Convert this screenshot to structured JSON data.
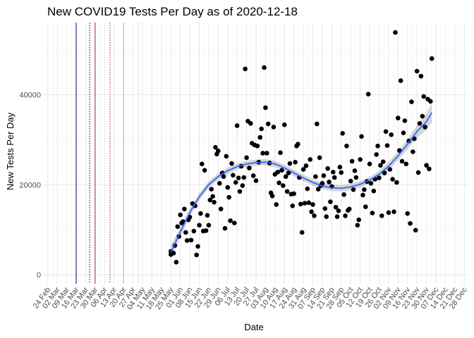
{
  "chart_data": {
    "type": "scatter",
    "title": "New COVID19 Tests Per Day as of 2020-12-18",
    "xlabel": "Date",
    "ylabel": "New Tests Per Day",
    "x_range": [
      "2020-02-21",
      "2020-12-31"
    ],
    "y_range": [
      -2000,
      56000
    ],
    "y_ticks": [
      0,
      20000,
      40000
    ],
    "y_tick_labels": [
      "0",
      "20000",
      "40000"
    ],
    "x_ticks": [
      "2020-02-24",
      "2020-03-02",
      "2020-03-09",
      "2020-03-16",
      "2020-03-23",
      "2020-03-30",
      "2020-04-06",
      "2020-04-13",
      "2020-04-20",
      "2020-04-27",
      "2020-05-04",
      "2020-05-11",
      "2020-05-18",
      "2020-05-25",
      "2020-06-01",
      "2020-06-08",
      "2020-06-15",
      "2020-06-22",
      "2020-06-29",
      "2020-07-06",
      "2020-07-13",
      "2020-07-20",
      "2020-07-27",
      "2020-08-03",
      "2020-08-10",
      "2020-08-17",
      "2020-08-24",
      "2020-08-31",
      "2020-09-07",
      "2020-09-14",
      "2020-09-21",
      "2020-09-28",
      "2020-10-05",
      "2020-10-12",
      "2020-10-19",
      "2020-10-26",
      "2020-11-02",
      "2020-11-09",
      "2020-11-16",
      "2020-11-23",
      "2020-11-30",
      "2020-12-07",
      "2020-12-14",
      "2020-12-21",
      "2020-12-28"
    ],
    "x_tick_labels": [
      "24 Feb",
      "02 Mar",
      "09 Mar",
      "16 Mar",
      "23 Mar",
      "30 Mar",
      "06 Apr",
      "13 Apr",
      "20 Apr",
      "27 Apr",
      "04 May",
      "11 May",
      "18 May",
      "25 May",
      "01 Jun",
      "08 Jun",
      "15 Jun",
      "22 Jun",
      "29 Jun",
      "06 Jul",
      "13 Jul",
      "20 Jul",
      "27 Jul",
      "03 Aug",
      "10 Aug",
      "17 Aug",
      "24 Aug",
      "31 Aug",
      "07 Sep",
      "14 Sep",
      "21 Sep",
      "28 Sep",
      "05 Oct",
      "12 Oct",
      "19 Oct",
      "26 Oct",
      "02 Nov",
      "09 Nov",
      "16 Nov",
      "23 Nov",
      "30 Nov",
      "07 Dec",
      "14 Dec",
      "21 Dec",
      "28 Dec"
    ],
    "grid": true,
    "legend": "none",
    "vlines": [
      {
        "x": "2020-03-16",
        "color": "#000080",
        "style": "solid"
      },
      {
        "x": "2020-03-26",
        "color": "#000000",
        "style": "dotted"
      },
      {
        "x": "2020-03-30",
        "color": "#b22222",
        "style": "solid"
      },
      {
        "x": "2020-04-10",
        "color": "#b22222",
        "style": "dotted"
      },
      {
        "x": "2020-04-20",
        "color": "#ee9090",
        "style": "solid"
      },
      {
        "x": "2020-05-01",
        "color": "#f4b8b8",
        "style": "dotted"
      }
    ],
    "series": [
      {
        "type": "scatter",
        "color": "#000000",
        "points": [
          [
            "2020-05-25",
            4500
          ],
          [
            "2020-05-25",
            5200
          ],
          [
            "2020-05-27",
            4800
          ],
          [
            "2020-05-28",
            6500
          ],
          [
            "2020-05-29",
            2800
          ],
          [
            "2020-05-30",
            10700
          ],
          [
            "2020-05-31",
            8500
          ],
          [
            "2020-06-01",
            13300
          ],
          [
            "2020-06-02",
            11500
          ],
          [
            "2020-06-03",
            11800
          ],
          [
            "2020-06-04",
            14600
          ],
          [
            "2020-06-05",
            9400
          ],
          [
            "2020-06-06",
            7600
          ],
          [
            "2020-06-07",
            12200
          ],
          [
            "2020-06-08",
            12800
          ],
          [
            "2020-06-09",
            7700
          ],
          [
            "2020-06-10",
            15800
          ],
          [
            "2020-06-11",
            9700
          ],
          [
            "2020-06-12",
            15300
          ],
          [
            "2020-06-13",
            4400
          ],
          [
            "2020-06-14",
            6300
          ],
          [
            "2020-06-15",
            11000
          ],
          [
            "2020-06-16",
            13600
          ],
          [
            "2020-06-17",
            24600
          ],
          [
            "2020-06-18",
            9700
          ],
          [
            "2020-06-19",
            23200
          ],
          [
            "2020-06-20",
            9800
          ],
          [
            "2020-06-21",
            13200
          ],
          [
            "2020-06-22",
            11000
          ],
          [
            "2020-06-23",
            16600
          ],
          [
            "2020-06-24",
            19000
          ],
          [
            "2020-06-25",
            17400
          ],
          [
            "2020-06-26",
            16100
          ],
          [
            "2020-06-27",
            28300
          ],
          [
            "2020-06-28",
            26800
          ],
          [
            "2020-06-29",
            27500
          ],
          [
            "2020-06-30",
            20300
          ],
          [
            "2020-07-01",
            14600
          ],
          [
            "2020-07-02",
            22600
          ],
          [
            "2020-07-03",
            21800
          ],
          [
            "2020-07-04",
            10300
          ],
          [
            "2020-07-05",
            26300
          ],
          [
            "2020-07-06",
            19400
          ],
          [
            "2020-07-07",
            17200
          ],
          [
            "2020-07-08",
            12000
          ],
          [
            "2020-07-09",
            24700
          ],
          [
            "2020-07-10",
            22100
          ],
          [
            "2020-07-11",
            11500
          ],
          [
            "2020-07-12",
            20500
          ],
          [
            "2020-07-13",
            33100
          ],
          [
            "2020-07-14",
            21500
          ],
          [
            "2020-07-15",
            18500
          ],
          [
            "2020-07-16",
            24100
          ],
          [
            "2020-07-17",
            19800
          ],
          [
            "2020-07-18",
            21600
          ],
          [
            "2020-07-19",
            45700
          ],
          [
            "2020-07-20",
            26000
          ],
          [
            "2020-07-21",
            34100
          ],
          [
            "2020-07-22",
            23700
          ],
          [
            "2020-07-23",
            33600
          ],
          [
            "2020-07-24",
            29200
          ],
          [
            "2020-07-25",
            22000
          ],
          [
            "2020-07-26",
            28800
          ],
          [
            "2020-07-27",
            20900
          ],
          [
            "2020-07-28",
            28600
          ],
          [
            "2020-07-29",
            25000
          ],
          [
            "2020-07-30",
            30500
          ],
          [
            "2020-07-31",
            32400
          ],
          [
            "2020-08-01",
            27000
          ],
          [
            "2020-08-02",
            46000
          ],
          [
            "2020-08-03",
            37100
          ],
          [
            "2020-08-04",
            27000
          ],
          [
            "2020-08-05",
            33500
          ],
          [
            "2020-08-06",
            24800
          ],
          [
            "2020-08-07",
            18200
          ],
          [
            "2020-08-08",
            17500
          ],
          [
            "2020-08-09",
            32800
          ],
          [
            "2020-08-10",
            22300
          ],
          [
            "2020-08-11",
            15600
          ],
          [
            "2020-08-12",
            22800
          ],
          [
            "2020-08-13",
            20400
          ],
          [
            "2020-08-14",
            27100
          ],
          [
            "2020-08-15",
            23200
          ],
          [
            "2020-08-16",
            19800
          ],
          [
            "2020-08-17",
            33300
          ],
          [
            "2020-08-18",
            21800
          ],
          [
            "2020-08-19",
            18500
          ],
          [
            "2020-08-20",
            22600
          ],
          [
            "2020-08-21",
            24700
          ],
          [
            "2020-08-22",
            17900
          ],
          [
            "2020-08-23",
            15300
          ],
          [
            "2020-08-24",
            18000
          ],
          [
            "2020-08-25",
            25000
          ],
          [
            "2020-08-26",
            28600
          ],
          [
            "2020-08-27",
            29000
          ],
          [
            "2020-08-28",
            21600
          ],
          [
            "2020-08-29",
            15700
          ],
          [
            "2020-08-30",
            9400
          ],
          [
            "2020-08-31",
            23400
          ],
          [
            "2020-09-01",
            15900
          ],
          [
            "2020-09-02",
            24200
          ],
          [
            "2020-09-03",
            19100
          ],
          [
            "2020-09-04",
            16000
          ],
          [
            "2020-09-05",
            25600
          ],
          [
            "2020-09-06",
            14000
          ],
          [
            "2020-09-07",
            15600
          ],
          [
            "2020-09-08",
            13100
          ],
          [
            "2020-09-09",
            21800
          ],
          [
            "2020-09-10",
            33500
          ],
          [
            "2020-09-11",
            19000
          ],
          [
            "2020-09-12",
            26000
          ],
          [
            "2020-09-13",
            19800
          ],
          [
            "2020-09-14",
            20300
          ],
          [
            "2020-09-15",
            22000
          ],
          [
            "2020-09-16",
            14700
          ],
          [
            "2020-09-17",
            12900
          ],
          [
            "2020-09-18",
            23600
          ],
          [
            "2020-09-19",
            20600
          ],
          [
            "2020-09-20",
            16200
          ],
          [
            "2020-09-21",
            19600
          ],
          [
            "2020-09-22",
            22800
          ],
          [
            "2020-09-23",
            21600
          ],
          [
            "2020-09-24",
            15000
          ],
          [
            "2020-09-25",
            12900
          ],
          [
            "2020-09-26",
            14200
          ],
          [
            "2020-09-27",
            23900
          ],
          [
            "2020-09-28",
            22700
          ],
          [
            "2020-09-29",
            31400
          ],
          [
            "2020-09-30",
            17800
          ],
          [
            "2020-10-01",
            13100
          ],
          [
            "2020-10-02",
            28600
          ],
          [
            "2020-10-03",
            14300
          ],
          [
            "2020-10-04",
            14600
          ],
          [
            "2020-10-05",
            20800
          ],
          [
            "2020-10-06",
            25200
          ],
          [
            "2020-10-07",
            18900
          ],
          [
            "2020-10-08",
            23100
          ],
          [
            "2020-10-09",
            21600
          ],
          [
            "2020-10-10",
            11000
          ],
          [
            "2020-10-11",
            12200
          ],
          [
            "2020-10-12",
            25600
          ],
          [
            "2020-10-13",
            30700
          ],
          [
            "2020-10-14",
            17700
          ],
          [
            "2020-10-15",
            18900
          ],
          [
            "2020-10-16",
            15100
          ],
          [
            "2020-10-17",
            20700
          ],
          [
            "2020-10-18",
            40100
          ],
          [
            "2020-10-19",
            24600
          ],
          [
            "2020-10-20",
            20300
          ],
          [
            "2020-10-21",
            13700
          ],
          [
            "2020-10-22",
            18600
          ],
          [
            "2020-10-23",
            21200
          ],
          [
            "2020-10-24",
            26700
          ],
          [
            "2020-10-25",
            28600
          ],
          [
            "2020-10-26",
            21500
          ],
          [
            "2020-10-27",
            24300
          ],
          [
            "2020-10-28",
            13100
          ],
          [
            "2020-10-29",
            25100
          ],
          [
            "2020-10-30",
            22600
          ],
          [
            "2020-10-31",
            31800
          ],
          [
            "2020-11-01",
            28700
          ],
          [
            "2020-11-02",
            13800
          ],
          [
            "2020-11-03",
            23400
          ],
          [
            "2020-11-04",
            31100
          ],
          [
            "2020-11-05",
            21200
          ],
          [
            "2020-11-06",
            14000
          ],
          [
            "2020-11-07",
            53800
          ],
          [
            "2020-11-08",
            20500
          ],
          [
            "2020-11-09",
            34800
          ],
          [
            "2020-11-10",
            27600
          ],
          [
            "2020-11-11",
            43100
          ],
          [
            "2020-11-12",
            25200
          ],
          [
            "2020-11-13",
            31500
          ],
          [
            "2020-11-14",
            34200
          ],
          [
            "2020-11-15",
            24600
          ],
          [
            "2020-11-16",
            13600
          ],
          [
            "2020-11-17",
            29700
          ],
          [
            "2020-11-18",
            11400
          ],
          [
            "2020-11-19",
            38400
          ],
          [
            "2020-11-20",
            27300
          ],
          [
            "2020-11-21",
            30200
          ],
          [
            "2020-11-22",
            9900
          ],
          [
            "2020-11-23",
            45200
          ],
          [
            "2020-11-24",
            22700
          ],
          [
            "2020-11-25",
            33600
          ],
          [
            "2020-11-26",
            44100
          ],
          [
            "2020-11-27",
            35200
          ],
          [
            "2020-11-28",
            39600
          ],
          [
            "2020-11-29",
            32800
          ],
          [
            "2020-11-30",
            24300
          ],
          [
            "2020-12-01",
            39000
          ],
          [
            "2020-12-02",
            23500
          ],
          [
            "2020-12-03",
            38500
          ],
          [
            "2020-12-04",
            48000
          ]
        ]
      },
      {
        "type": "smooth",
        "color": "#3366ff",
        "band_color": "#999999",
        "points": [
          [
            "2020-05-25",
            5000,
            3500,
            6500
          ],
          [
            "2020-06-01",
            9500,
            8400,
            10600
          ],
          [
            "2020-06-08",
            13800,
            12900,
            14700
          ],
          [
            "2020-06-15",
            17300,
            16500,
            18100
          ],
          [
            "2020-06-22",
            20000,
            19300,
            20700
          ],
          [
            "2020-06-29",
            21800,
            21100,
            22500
          ],
          [
            "2020-07-06",
            23100,
            22400,
            23800
          ],
          [
            "2020-07-13",
            24000,
            23300,
            24700
          ],
          [
            "2020-07-20",
            24600,
            23900,
            25300
          ],
          [
            "2020-07-27",
            24900,
            24200,
            25600
          ],
          [
            "2020-08-03",
            25000,
            24300,
            25700
          ],
          [
            "2020-08-10",
            24600,
            23900,
            25300
          ],
          [
            "2020-08-17",
            23700,
            23000,
            24400
          ],
          [
            "2020-08-24",
            22600,
            21900,
            23300
          ],
          [
            "2020-08-31",
            21500,
            20800,
            22200
          ],
          [
            "2020-09-07",
            20500,
            19800,
            21200
          ],
          [
            "2020-09-14",
            19700,
            19000,
            20400
          ],
          [
            "2020-09-21",
            19300,
            18600,
            20000
          ],
          [
            "2020-09-28",
            19200,
            18500,
            19900
          ],
          [
            "2020-10-05",
            19500,
            18800,
            20200
          ],
          [
            "2020-10-12",
            20100,
            19400,
            20800
          ],
          [
            "2020-10-19",
            21000,
            20300,
            21700
          ],
          [
            "2020-10-26",
            22300,
            21500,
            23100
          ],
          [
            "2020-11-02",
            24100,
            23200,
            25000
          ],
          [
            "2020-11-09",
            26400,
            25400,
            27400
          ],
          [
            "2020-11-16",
            29000,
            27900,
            30100
          ],
          [
            "2020-11-23",
            31800,
            30400,
            33200
          ],
          [
            "2020-11-30",
            34000,
            32200,
            35800
          ],
          [
            "2020-12-04",
            36000,
            33800,
            38200
          ]
        ]
      }
    ]
  }
}
